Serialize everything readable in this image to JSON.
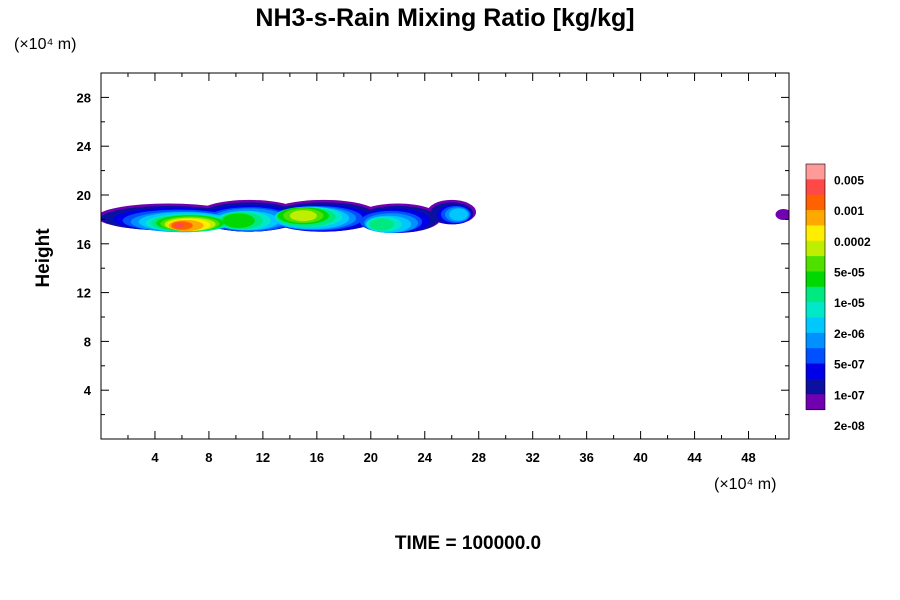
{
  "chart_data": {
    "type": "heatmap",
    "title": "NH3-s-Rain Mixing Ratio [kg/kg]",
    "x_unit": "(×10⁴ m)",
    "y_unit": "(×10⁴ m)",
    "ylabel": "Height",
    "xlabel": "",
    "xlim": [
      0,
      51
    ],
    "ylim": [
      0,
      30
    ],
    "x_ticks": [
      4,
      8,
      12,
      16,
      20,
      24,
      28,
      32,
      36,
      40,
      44,
      48
    ],
    "y_ticks": [
      4,
      8,
      12,
      16,
      20,
      24,
      28
    ],
    "colorbar": {
      "labels": [
        "0.005",
        "0.001",
        "0.0002",
        "5e-05",
        "1e-05",
        "2e-06",
        "5e-07",
        "1e-07",
        "2e-08"
      ],
      "colors": [
        "#ff9a9a",
        "#ff4848",
        "#ff6000",
        "#ffa800",
        "#ffee00",
        "#c0ee00",
        "#50e000",
        "#00d800",
        "#00e880",
        "#00e8c8",
        "#00c8ff",
        "#0090ff",
        "#0050ff",
        "#0000e8",
        "#0a10a0",
        "#7000b0"
      ]
    },
    "cloud_band": {
      "x_range": [
        0,
        27.5
      ],
      "y_range": [
        16.2,
        19.6
      ],
      "note_values": [
        {
          "x": 6.0,
          "y": 17.5,
          "level": "0.001"
        },
        {
          "x": 15.0,
          "y": 18.3,
          "level": "1e-05"
        },
        {
          "x": 50.5,
          "y": 18.4,
          "level": "2e-08"
        }
      ]
    },
    "footer": "TIME = 100000.0"
  }
}
